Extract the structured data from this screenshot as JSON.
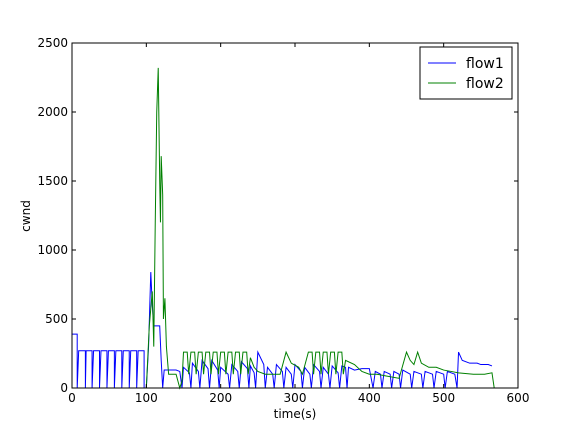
{
  "chart_data": {
    "type": "line",
    "xlabel": "time(s)",
    "ylabel": "cwnd",
    "xlim": [
      0,
      600
    ],
    "ylim": [
      0,
      2500
    ],
    "xticks": [
      0,
      100,
      200,
      300,
      400,
      500,
      600
    ],
    "yticks": [
      0,
      500,
      1000,
      1500,
      2000,
      2500
    ],
    "legend": "upper right",
    "series": [
      {
        "name": "flow1",
        "color": "#0000ff",
        "x": [
          0,
          7,
          7,
          9,
          18,
          18,
          19,
          27,
          27,
          29,
          37,
          37,
          39,
          47,
          47,
          49,
          57,
          57,
          59,
          67,
          67,
          69,
          77,
          77,
          79,
          87,
          87,
          89,
          97,
          97,
          100,
          103,
          106,
          108,
          110,
          118,
          120,
          122,
          124,
          135,
          140,
          145,
          148,
          150,
          158,
          160,
          162,
          170,
          172,
          175,
          183,
          185,
          188,
          196,
          198,
          200,
          210,
          212,
          215,
          223,
          225,
          228,
          236,
          238,
          240,
          245,
          247,
          250,
          258,
          260,
          263,
          270,
          272,
          275,
          283,
          285,
          288,
          295,
          297,
          300,
          308,
          310,
          313,
          320,
          322,
          325,
          333,
          335,
          338,
          345,
          347,
          350,
          358,
          360,
          363,
          368,
          370,
          372,
          380,
          390,
          400,
          405,
          408,
          415,
          417,
          420,
          428,
          430,
          433,
          440,
          442,
          445,
          455,
          457,
          460,
          470,
          472,
          475,
          485,
          487,
          490,
          500,
          502,
          505,
          515,
          518,
          520,
          525,
          535,
          545,
          550,
          560,
          565
        ],
        "values": [
          390,
          390,
          0,
          270,
          270,
          0,
          270,
          270,
          0,
          270,
          270,
          0,
          270,
          270,
          0,
          270,
          270,
          0,
          270,
          270,
          0,
          270,
          270,
          0,
          270,
          270,
          0,
          270,
          270,
          0,
          0,
          300,
          840,
          600,
          450,
          450,
          200,
          0,
          130,
          130,
          130,
          120,
          0,
          150,
          110,
          0,
          180,
          120,
          0,
          200,
          140,
          0,
          200,
          130,
          0,
          150,
          100,
          0,
          170,
          120,
          0,
          190,
          140,
          0,
          160,
          110,
          0,
          260,
          170,
          0,
          150,
          100,
          0,
          170,
          120,
          0,
          150,
          100,
          0,
          170,
          120,
          0,
          150,
          100,
          0,
          170,
          120,
          0,
          150,
          100,
          0,
          160,
          110,
          0,
          160,
          150,
          0,
          150,
          130,
          140,
          140,
          0,
          120,
          100,
          0,
          120,
          100,
          0,
          120,
          100,
          0,
          130,
          100,
          0,
          120,
          100,
          0,
          120,
          100,
          0,
          120,
          100,
          0,
          120,
          100,
          0,
          260,
          200,
          180,
          180,
          170,
          170,
          160
        ]
      },
      {
        "name": "flow2",
        "color": "#008000",
        "x": [
          0,
          100,
          104,
          108,
          110,
          112,
          114,
          116,
          118,
          119,
          120,
          122,
          123,
          125,
          127,
          130,
          140,
          145,
          148,
          150,
          155,
          157,
          160,
          165,
          167,
          170,
          175,
          177,
          180,
          185,
          187,
          190,
          195,
          197,
          200,
          205,
          207,
          210,
          215,
          217,
          220,
          225,
          227,
          230,
          235,
          237,
          240,
          245,
          250,
          260,
          270,
          280,
          288,
          295,
          305,
          310,
          318,
          323,
          325,
          328,
          333,
          335,
          338,
          343,
          345,
          348,
          353,
          355,
          358,
          363,
          365,
          368,
          380,
          390,
          400,
          410,
          420,
          440,
          450,
          455,
          460,
          465,
          470,
          480,
          490,
          500,
          510,
          520,
          540,
          555,
          565,
          568
        ],
        "values": [
          0,
          0,
          450,
          700,
          300,
          1200,
          2000,
          2320,
          1500,
          1200,
          1680,
          1400,
          500,
          650,
          300,
          100,
          100,
          0,
          50,
          260,
          260,
          100,
          260,
          260,
          100,
          260,
          260,
          100,
          260,
          260,
          100,
          260,
          260,
          100,
          260,
          260,
          100,
          260,
          260,
          100,
          260,
          260,
          100,
          260,
          260,
          100,
          220,
          150,
          120,
          100,
          100,
          100,
          260,
          180,
          150,
          100,
          260,
          260,
          100,
          260,
          260,
          100,
          260,
          260,
          100,
          260,
          260,
          100,
          260,
          260,
          100,
          200,
          170,
          120,
          100,
          100,
          90,
          70,
          260,
          200,
          170,
          260,
          180,
          150,
          150,
          130,
          120,
          110,
          100,
          100,
          110,
          0
        ]
      }
    ]
  }
}
